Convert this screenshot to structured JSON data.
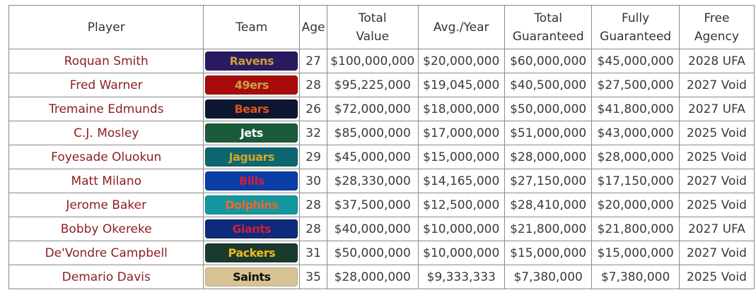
{
  "headers": [
    "Player",
    "Team",
    "Age",
    "Total Value",
    "Avg./Year",
    "Total Guaranteed",
    "Fully Guaranteed",
    "Free Agency"
  ],
  "header_lines": [
    [
      "Player"
    ],
    [
      "Team"
    ],
    [
      "Age"
    ],
    [
      "Total",
      "Value"
    ],
    [
      "Avg./Year"
    ],
    [
      "Total",
      "Guaranteed"
    ],
    [
      "Fully",
      "Guaranteed"
    ],
    [
      "Free",
      "Agency"
    ]
  ],
  "rows": [
    {
      "player": "Roquan Smith",
      "team": "Ravens",
      "team_bg": "#2a1a62",
      "team_fg": "#c8a03a",
      "age": "27",
      "total_value": "$100,000,000",
      "avg_year": "$20,000,000",
      "total_guaranteed": "$60,000,000",
      "fully_guaranteed": "$45,000,000",
      "free_agency": "2028 UFA"
    },
    {
      "player": "Fred Warner",
      "team": "49ers",
      "team_bg": "#a90b0b",
      "team_fg": "#c9a24a",
      "age": "28",
      "total_value": "$95,225,000",
      "avg_year": "$19,045,000",
      "total_guaranteed": "$40,500,000",
      "fully_guaranteed": "$27,500,000",
      "free_agency": "2027 Void"
    },
    {
      "player": "Tremaine Edmunds",
      "team": "Bears",
      "team_bg": "#0d1830",
      "team_fg": "#e0521c",
      "age": "26",
      "total_value": "$72,000,000",
      "avg_year": "$18,000,000",
      "total_guaranteed": "$50,000,000",
      "fully_guaranteed": "$41,800,000",
      "free_agency": "2027 UFA"
    },
    {
      "player": "C.J. Mosley",
      "team": "Jets",
      "team_bg": "#1b5a3a",
      "team_fg": "#ffffff",
      "age": "32",
      "total_value": "$85,000,000",
      "avg_year": "$17,000,000",
      "total_guaranteed": "$51,000,000",
      "fully_guaranteed": "$43,000,000",
      "free_agency": "2025 Void"
    },
    {
      "player": "Foyesade Oluokun",
      "team": "Jaguars",
      "team_bg": "#0d6670",
      "team_fg": "#d3a625",
      "age": "29",
      "total_value": "$45,000,000",
      "avg_year": "$15,000,000",
      "total_guaranteed": "$28,000,000",
      "fully_guaranteed": "$28,000,000",
      "free_agency": "2025 Void"
    },
    {
      "player": "Matt Milano",
      "team": "Bills",
      "team_bg": "#0a3da6",
      "team_fg": "#d41d3a",
      "age": "30",
      "total_value": "$28,330,000",
      "avg_year": "$14,165,000",
      "total_guaranteed": "$27,150,000",
      "fully_guaranteed": "$17,150,000",
      "free_agency": "2027 Void"
    },
    {
      "player": "Jerome Baker",
      "team": "Dolphins",
      "team_bg": "#14979e",
      "team_fg": "#f2652a",
      "age": "28",
      "total_value": "$37,500,000",
      "avg_year": "$12,500,000",
      "total_guaranteed": "$28,410,000",
      "fully_guaranteed": "$20,000,000",
      "free_agency": "2025 Void"
    },
    {
      "player": "Bobby Okereke",
      "team": "Giants",
      "team_bg": "#0e2a7a",
      "team_fg": "#d41d3a",
      "age": "28",
      "total_value": "$40,000,000",
      "avg_year": "$10,000,000",
      "total_guaranteed": "$21,800,000",
      "fully_guaranteed": "$21,800,000",
      "free_agency": "2027 UFA"
    },
    {
      "player": "De'Vondre Campbell",
      "team": "Packers",
      "team_bg": "#1b3a2e",
      "team_fg": "#f5b81c",
      "age": "31",
      "total_value": "$50,000,000",
      "avg_year": "$10,000,000",
      "total_guaranteed": "$15,000,000",
      "fully_guaranteed": "$15,000,000",
      "free_agency": "2027 Void"
    },
    {
      "player": "Demario Davis",
      "team": "Saints",
      "team_bg": "#d7c394",
      "team_fg": "#101010",
      "age": "35",
      "total_value": "$28,000,000",
      "avg_year": "$9,333,333",
      "total_guaranteed": "$7,380,000",
      "fully_guaranteed": "$7,380,000",
      "free_agency": "2025 Void"
    }
  ]
}
